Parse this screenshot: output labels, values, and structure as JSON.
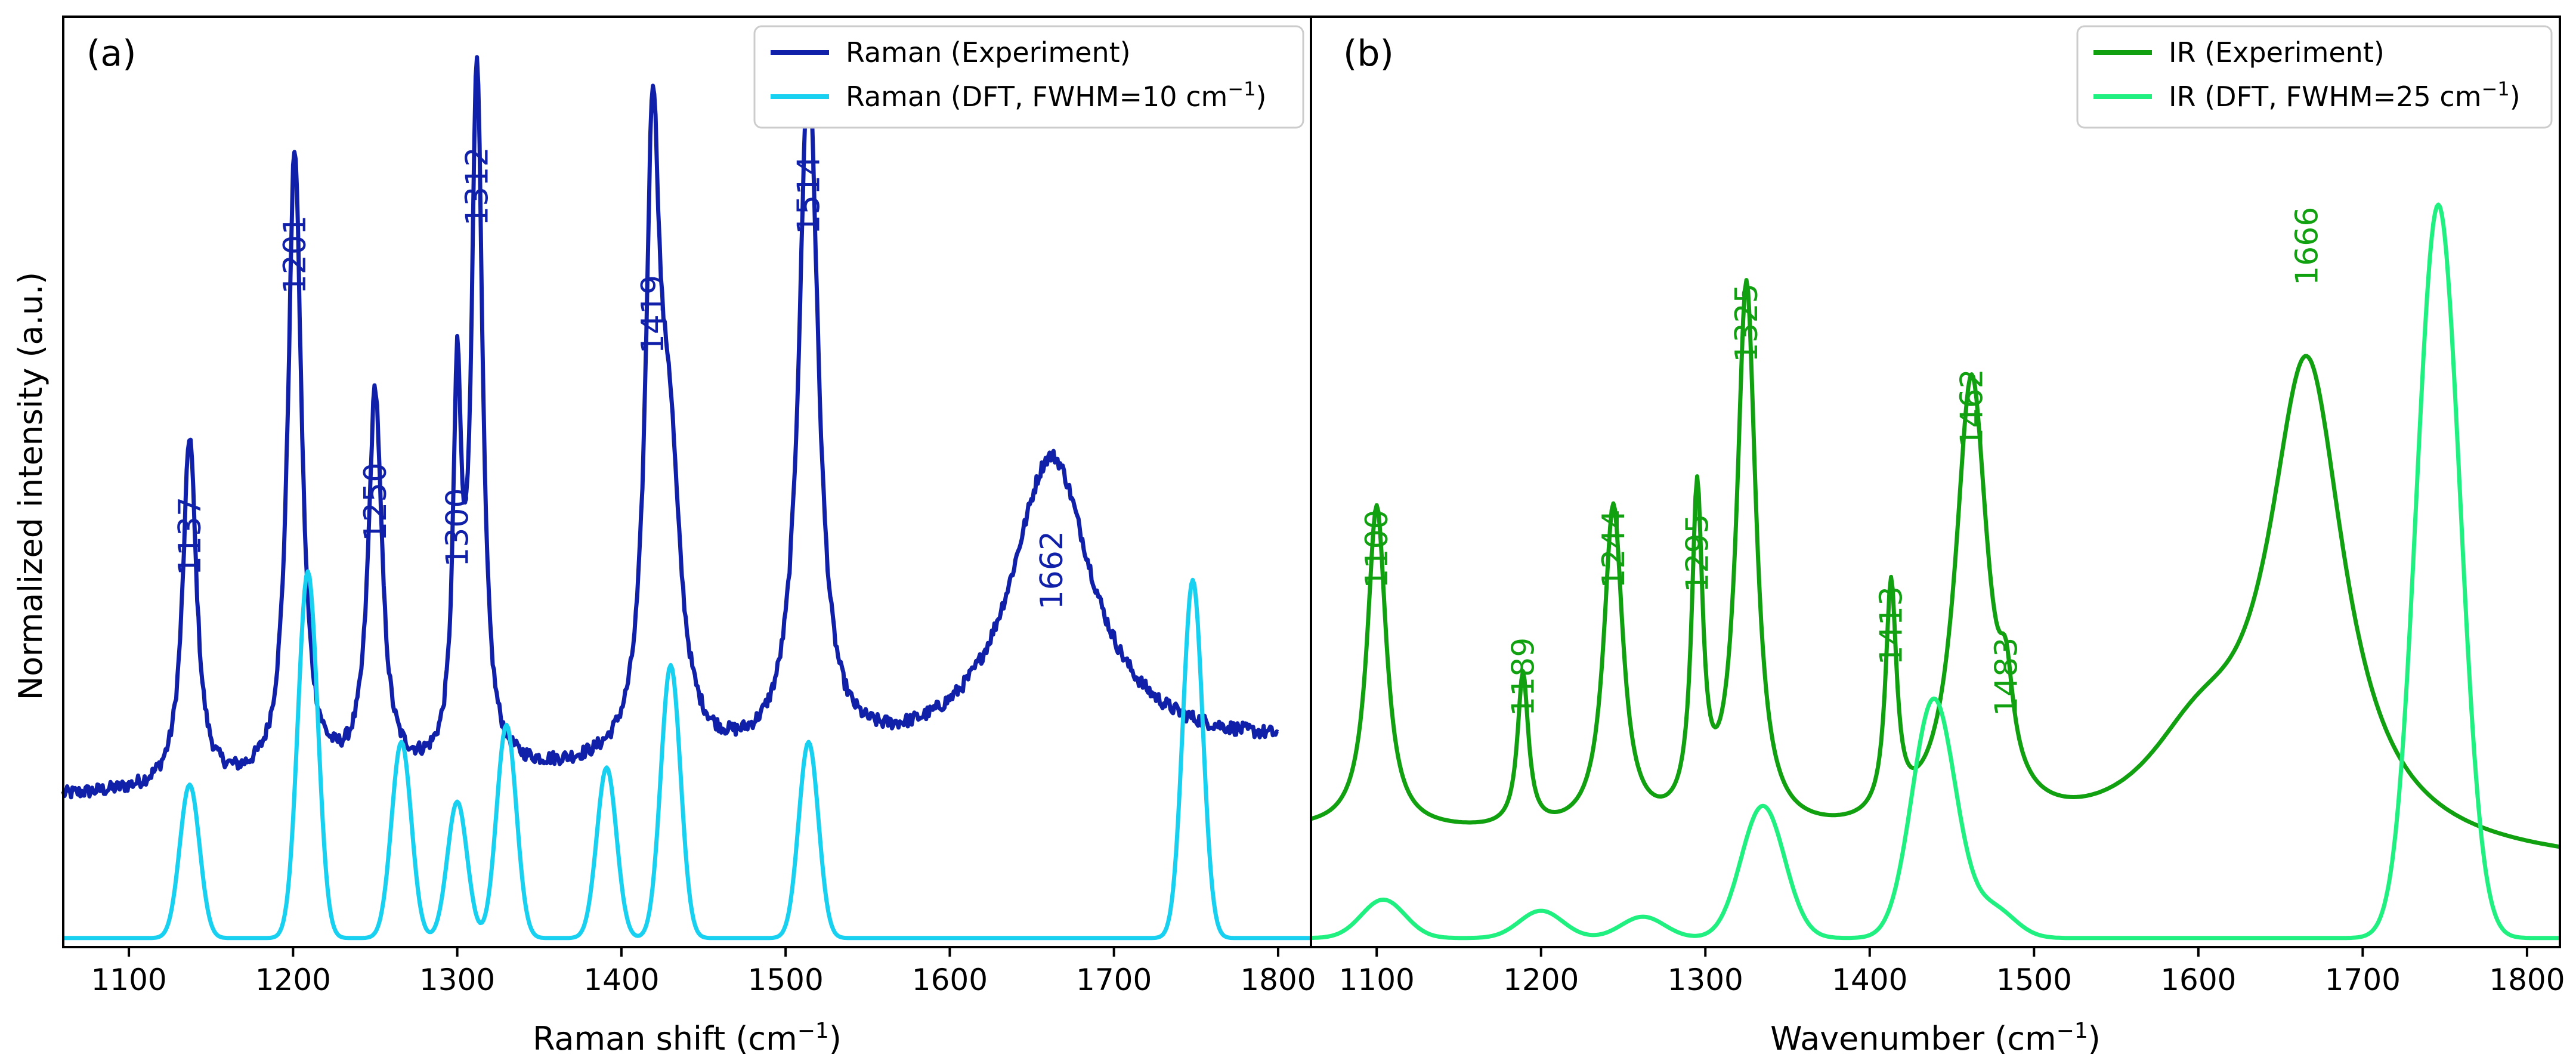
{
  "figure": {
    "ylabel": "Normalized  intensity (a.u.)"
  },
  "chart_data": [
    {
      "type": "line",
      "panel_label": "(a)",
      "xlabel": "Raman shift (cm",
      "xlabel_sup": "−1",
      "xlabel_tail": ")",
      "ylabel": "Normalized  intensity (a.u.)",
      "xlim": [
        1060,
        1820
      ],
      "ylim": [
        0,
        1.0
      ],
      "xticks": [
        1100,
        1200,
        1300,
        1400,
        1500,
        1600,
        1700,
        1800
      ],
      "grid": false,
      "legend_position": "top-right",
      "series": [
        {
          "name": "Raman (Experiment)",
          "color": "#1020a8",
          "kind": "experiment",
          "baseline_start": 0.17,
          "baseline_end": 0.23,
          "peaks": [
            {
              "x": 1137,
              "height": 0.41,
              "width": 5
            },
            {
              "x": 1201,
              "height": 0.74,
              "width": 5
            },
            {
              "x": 1250,
              "height": 0.45,
              "width": 5
            },
            {
              "x": 1300,
              "height": 0.42,
              "width": 3
            },
            {
              "x": 1312,
              "height": 0.82,
              "width": 4
            },
            {
              "x": 1419,
              "height": 0.67,
              "width": 5
            },
            {
              "x": 1429,
              "height": 0.33,
              "width": 8
            },
            {
              "x": 1514,
              "height": 0.81,
              "width": 7
            },
            {
              "x": 1662,
              "height": 0.35,
              "width": 30
            }
          ],
          "noise": 0.008
        },
        {
          "name": "Raman (DFT, FWHM=10 cm",
          "name_sup": "−1",
          "name_tail": ")",
          "color": "#18d0f0",
          "kind": "dft",
          "baseline_start": 0.005,
          "baseline_end": 0.005,
          "peaks": [
            {
              "x": 1137,
              "height": 0.18,
              "width": 10
            },
            {
              "x": 1209,
              "height": 0.43,
              "width": 10
            },
            {
              "x": 1266,
              "height": 0.23,
              "width": 10
            },
            {
              "x": 1300,
              "height": 0.16,
              "width": 10
            },
            {
              "x": 1330,
              "height": 0.25,
              "width": 10
            },
            {
              "x": 1391,
              "height": 0.2,
              "width": 10
            },
            {
              "x": 1430,
              "height": 0.32,
              "width": 10
            },
            {
              "x": 1514,
              "height": 0.23,
              "width": 10
            },
            {
              "x": 1748,
              "height": 0.42,
              "width": 10
            }
          ]
        }
      ],
      "annotations": [
        {
          "text": "1137",
          "x": 1137,
          "y": 0.43
        },
        {
          "text": "1201",
          "x": 1201,
          "y": 0.76
        },
        {
          "text": "1250",
          "x": 1250,
          "y": 0.47
        },
        {
          "text": "1300",
          "x": 1300,
          "y": 0.44
        },
        {
          "text": "1312",
          "x": 1312,
          "y": 0.84
        },
        {
          "text": "1419",
          "x": 1419,
          "y": 0.69
        },
        {
          "text": "1514",
          "x": 1514,
          "y": 0.83
        },
        {
          "text": "1662",
          "x": 1662,
          "y": 0.39
        }
      ],
      "annotation_color": "#1020a8"
    },
    {
      "type": "line",
      "panel_label": "(b)",
      "xlabel": "Wavenumber (cm",
      "xlabel_sup": "−1",
      "xlabel_tail": ")",
      "xlim": [
        1060,
        1820
      ],
      "ylim": [
        0,
        1.0
      ],
      "xticks": [
        1100,
        1200,
        1300,
        1400,
        1500,
        1600,
        1700,
        1800
      ],
      "grid": false,
      "legend_position": "top-right",
      "series": [
        {
          "name": "IR (Experiment)",
          "color": "#10a010",
          "kind": "experiment_smooth",
          "baseline_start": 0.13,
          "baseline_end": 0.09,
          "peaks": [
            {
              "x": 1100,
              "height": 0.38,
              "width": 7
            },
            {
              "x": 1189,
              "height": 0.18,
              "width": 4
            },
            {
              "x": 1244,
              "height": 0.38,
              "width": 7
            },
            {
              "x": 1295,
              "height": 0.38,
              "width": 4
            },
            {
              "x": 1325,
              "height": 0.64,
              "width": 7
            },
            {
              "x": 1413,
              "height": 0.27,
              "width": 4
            },
            {
              "x": 1462,
              "height": 0.53,
              "width": 12
            },
            {
              "x": 1483,
              "height": 0.09,
              "width": 5
            },
            {
              "x": 1666,
              "height": 0.56,
              "width": 28
            },
            {
              "x": 1600,
              "height": 0.1,
              "width": 40
            }
          ]
        },
        {
          "name": "IR (DFT, FWHM=25 cm",
          "name_sup": "−1",
          "name_tail": ")",
          "color": "#20f080",
          "kind": "dft",
          "baseline_start": 0.005,
          "baseline_end": 0.005,
          "peaks": [
            {
              "x": 1104,
              "height": 0.045,
              "width": 22
            },
            {
              "x": 1200,
              "height": 0.032,
              "width": 22
            },
            {
              "x": 1262,
              "height": 0.025,
              "width": 22
            },
            {
              "x": 1335,
              "height": 0.155,
              "width": 22
            },
            {
              "x": 1439,
              "height": 0.28,
              "width": 22
            },
            {
              "x": 1475,
              "height": 0.035,
              "width": 22
            },
            {
              "x": 1746,
              "height": 0.86,
              "width": 22
            }
          ]
        }
      ],
      "annotations": [
        {
          "text": "1100",
          "x": 1100,
          "y": 0.415
        },
        {
          "text": "1189",
          "x": 1189,
          "y": 0.265
        },
        {
          "text": "1244",
          "x": 1244,
          "y": 0.415
        },
        {
          "text": "1295",
          "x": 1295,
          "y": 0.41
        },
        {
          "text": "1325",
          "x": 1325,
          "y": 0.68
        },
        {
          "text": "1413",
          "x": 1413,
          "y": 0.325
        },
        {
          "text": "1462",
          "x": 1462,
          "y": 0.58
        },
        {
          "text": "1483",
          "x": 1483,
          "y": 0.265
        },
        {
          "text": "1666",
          "x": 1666,
          "y": 0.77
        }
      ],
      "annotation_color": "#10a010"
    }
  ]
}
